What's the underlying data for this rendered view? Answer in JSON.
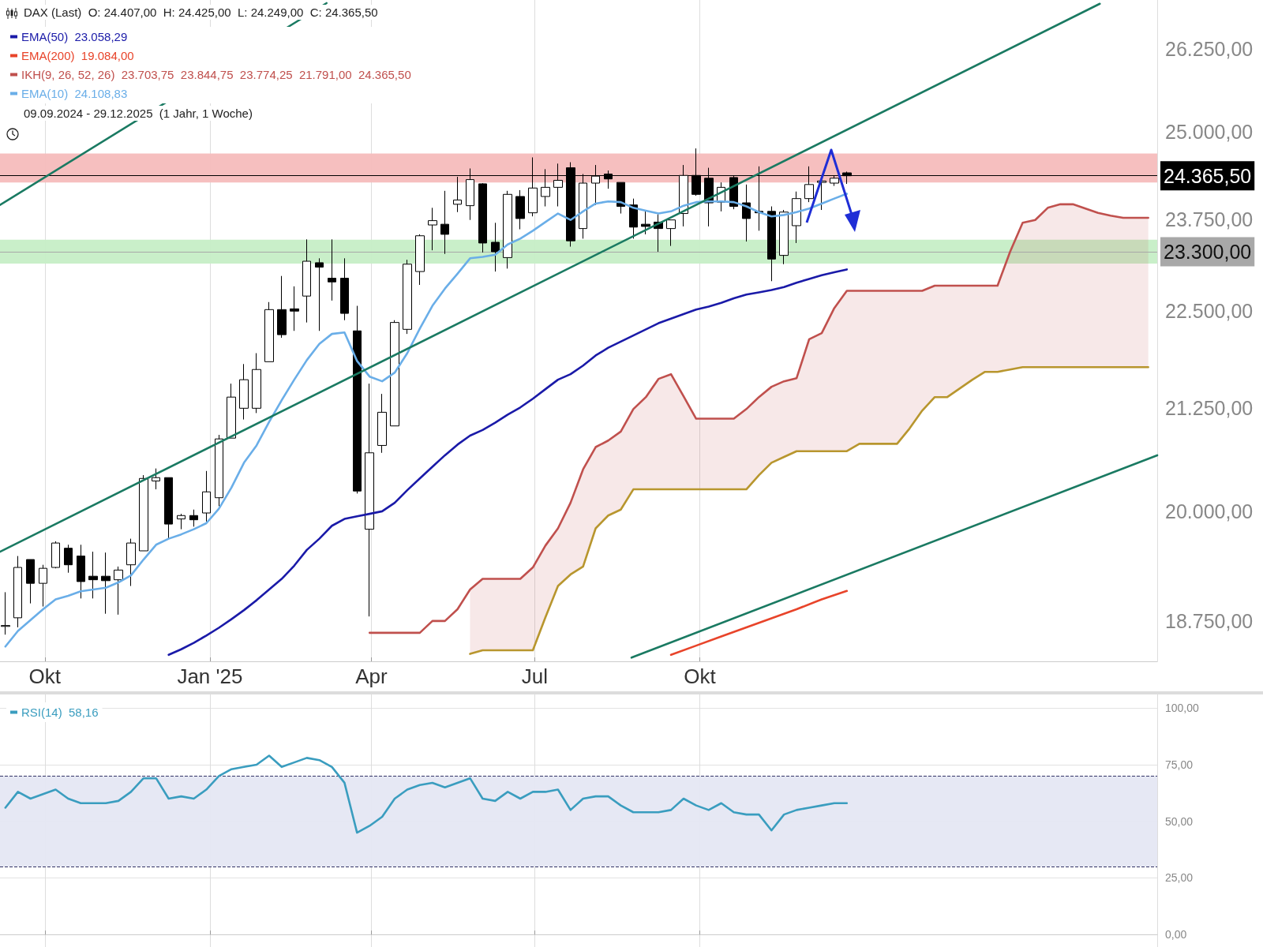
{
  "chart_data": [
    {
      "type": "candlestick",
      "title": "DAX (Last)  O: 24.407,00  H: 24.425,00  L: 24.249,00  C: 24.365,50",
      "subtitle": "09.09.2024 - 29.12.2025  (1 Jahr, 1 Woche)",
      "x": [
        "2024-09-09",
        "2024-09-16",
        "2024-09-23",
        "2024-09-30",
        "2024-10-07",
        "2024-10-14",
        "2024-10-21",
        "2024-10-28",
        "2024-11-04",
        "2024-11-11",
        "2024-11-18",
        "2024-11-25",
        "2024-12-02",
        "2024-12-09",
        "2024-12-16",
        "2024-12-23",
        "2024-12-30",
        "2025-01-06",
        "2025-01-13",
        "2025-01-20",
        "2025-01-27",
        "2025-02-03",
        "2025-02-10",
        "2025-02-17",
        "2025-02-24",
        "2025-03-03",
        "2025-03-10",
        "2025-03-17",
        "2025-03-24",
        "2025-03-31",
        "2025-04-07",
        "2025-04-14",
        "2025-04-21",
        "2025-04-28",
        "2025-05-05",
        "2025-05-12",
        "2025-05-19",
        "2025-05-26",
        "2025-06-02",
        "2025-06-09",
        "2025-06-16",
        "2025-06-23",
        "2025-06-30",
        "2025-07-07",
        "2025-07-14",
        "2025-07-21",
        "2025-07-28",
        "2025-08-04",
        "2025-08-11",
        "2025-08-18",
        "2025-08-25",
        "2025-09-01",
        "2025-09-08",
        "2025-09-15",
        "2025-09-22",
        "2025-09-29",
        "2025-10-06",
        "2025-10-13",
        "2025-10-20",
        "2025-10-27",
        "2025-11-03",
        "2025-11-10",
        "2025-11-17",
        "2025-11-24",
        "2025-12-01",
        "2025-12-08",
        "2025-12-15",
        "2025-12-22"
      ],
      "ohlc": [
        [
          18690,
          19070,
          18600,
          18700
        ],
        [
          18785,
          19480,
          18680,
          19350
        ],
        [
          19440,
          19440,
          18945,
          19170
        ],
        [
          19170,
          19380,
          18910,
          19340
        ],
        [
          19350,
          19650,
          19340,
          19630
        ],
        [
          19570,
          19610,
          19290,
          19380
        ],
        [
          19480,
          19610,
          19000,
          19190
        ],
        [
          19250,
          19530,
          19000,
          19210
        ],
        [
          19250,
          19520,
          18830,
          19200
        ],
        [
          19210,
          19360,
          18820,
          19320
        ],
        [
          19380,
          19680,
          19140,
          19630
        ],
        [
          19540,
          20430,
          19540,
          20390
        ],
        [
          20360,
          20510,
          20260,
          20400
        ],
        [
          20400,
          20400,
          19680,
          19850
        ],
        [
          19910,
          19970,
          19790,
          19950
        ],
        [
          19950,
          20020,
          19820,
          19900
        ],
        [
          19980,
          20480,
          19880,
          20230
        ],
        [
          20160,
          20920,
          20060,
          20870
        ],
        [
          20880,
          21560,
          20880,
          21390
        ],
        [
          21250,
          21810,
          21110,
          21610
        ],
        [
          21250,
          21950,
          21190,
          21740
        ],
        [
          21840,
          22620,
          21840,
          22520
        ],
        [
          22520,
          22970,
          22150,
          22190
        ],
        [
          22530,
          22830,
          22240,
          22500
        ],
        [
          22700,
          23470,
          22350,
          23170
        ],
        [
          23150,
          23210,
          22240,
          23090
        ],
        [
          22940,
          23470,
          22640,
          22890
        ],
        [
          22940,
          23210,
          22380,
          22470
        ],
        [
          22240,
          22570,
          20210,
          20240
        ],
        [
          19790,
          21560,
          18800,
          20700
        ],
        [
          20790,
          21430,
          20700,
          21200
        ],
        [
          21030,
          22380,
          21030,
          22350
        ],
        [
          22260,
          23190,
          22200,
          23130
        ],
        [
          23030,
          23540,
          22850,
          23520
        ],
        [
          23670,
          23910,
          23320,
          23730
        ],
        [
          23680,
          24150,
          23270,
          23540
        ],
        [
          23960,
          24350,
          23850,
          24020
        ],
        [
          23940,
          24470,
          23740,
          24310
        ],
        [
          24250,
          24260,
          23290,
          23420
        ],
        [
          23430,
          23700,
          23030,
          23300
        ],
        [
          23220,
          24150,
          23070,
          24100
        ],
        [
          24070,
          24160,
          23610,
          23760
        ],
        [
          23840,
          24630,
          23790,
          24190
        ],
        [
          24070,
          24460,
          23930,
          24200
        ],
        [
          24200,
          24540,
          23930,
          24300
        ],
        [
          24480,
          24560,
          23370,
          23450
        ],
        [
          23620,
          24390,
          23480,
          24260
        ],
        [
          24260,
          24520,
          23950,
          24360
        ],
        [
          24390,
          24440,
          24180,
          24320
        ],
        [
          24270,
          24270,
          23830,
          23930
        ],
        [
          23950,
          24040,
          23480,
          23640
        ],
        [
          23680,
          23860,
          23540,
          23650
        ],
        [
          23710,
          23820,
          23300,
          23620
        ],
        [
          23620,
          23740,
          23380,
          23740
        ],
        [
          23830,
          24520,
          23650,
          24370
        ],
        [
          24370,
          24760,
          24080,
          24100
        ],
        [
          24330,
          24480,
          23650,
          23980
        ],
        [
          23990,
          24270,
          23860,
          24200
        ],
        [
          24340,
          24370,
          23890,
          23930
        ],
        [
          23980,
          24240,
          23440,
          23760
        ],
        [
          23860,
          24500,
          23590,
          23840
        ],
        [
          23860,
          23930,
          22900,
          23200
        ],
        [
          23250,
          23880,
          23130,
          23850
        ],
        [
          23660,
          24140,
          23420,
          24040
        ],
        [
          24040,
          24500,
          23990,
          24240
        ],
        [
          24270,
          24300,
          23880,
          24290
        ],
        [
          24260,
          24370,
          24220,
          24330
        ],
        [
          24407,
          24425,
          24249,
          24365.5
        ]
      ],
      "color": "#000000",
      "series": [
        {
          "type": "line",
          "name": "EMA(50)  23.058,29",
          "color": "#1a1aa8",
          "values": [
            null,
            null,
            null,
            null,
            null,
            null,
            null,
            null,
            null,
            null,
            null,
            null,
            null,
            18380,
            18440,
            18510,
            18590,
            18675,
            18770,
            18870,
            18980,
            19100,
            19220,
            19370,
            19550,
            19680,
            19830,
            19910,
            19940,
            19970,
            20000,
            20100,
            20250,
            20390,
            20530,
            20670,
            20800,
            20910,
            20980,
            21070,
            21170,
            21260,
            21370,
            21490,
            21610,
            21680,
            21790,
            21920,
            22020,
            22100,
            22180,
            22260,
            22340,
            22400,
            22460,
            22520,
            22560,
            22610,
            22670,
            22720,
            22750,
            22780,
            22820,
            22880,
            22930,
            22980,
            23020,
            23058.29
          ]
        },
        {
          "type": "line",
          "name": "EMA(200)  19.084,00",
          "color": "#e8442a",
          "x": [
            "2025-09-15",
            "2025-09-29",
            "2025-10-13",
            "2025-10-27",
            "2025-11-10",
            "2025-11-24",
            "2025-12-08",
            "2025-12-22"
          ],
          "values": [
            18380,
            18480,
            18580,
            18680,
            18780,
            18880,
            18990,
            19084
          ]
        },
        {
          "type": "line",
          "name": "IKH(9, 26, 52, 26)  23.703,75  23.844,75  23.774,25  21.791,00  24.365,50",
          "color": "#c0504d",
          "x": [
            "2025-03-31",
            "2025-04-07",
            "2025-04-14",
            "2025-04-21",
            "2025-04-28",
            "2025-05-05",
            "2025-05-12",
            "2025-05-19",
            "2025-05-26",
            "2025-06-02",
            "2025-06-09",
            "2025-06-16",
            "2025-06-23",
            "2025-06-30",
            "2025-07-07",
            "2025-07-14",
            "2025-07-21",
            "2025-07-28",
            "2025-08-04",
            "2025-08-11",
            "2025-08-18",
            "2025-08-25",
            "2025-09-01",
            "2025-09-08",
            "2025-09-15",
            "2025-09-22",
            "2025-09-29",
            "2025-10-06",
            "2025-10-13",
            "2025-10-20",
            "2025-10-27",
            "2025-11-03",
            "2025-11-10",
            "2025-11-17",
            "2025-11-24",
            "2025-12-01",
            "2025-12-08",
            "2025-12-15",
            "2025-12-22",
            "2025-12-29",
            "2026-01-05",
            "2026-01-12",
            "2026-01-19",
            "2026-01-26",
            "2026-02-02",
            "2026-02-09",
            "2026-02-16",
            "2026-02-23",
            "2026-03-02",
            "2026-03-09",
            "2026-03-16",
            "2026-03-23",
            "2026-03-30",
            "2026-04-06",
            "2026-04-13",
            "2026-04-20",
            "2026-04-27",
            "2026-05-04",
            "2026-05-11",
            "2026-05-18",
            "2026-05-25",
            "2026-06-01",
            "2026-06-08"
          ],
          "values": [
            18620,
            18620,
            18620,
            18620,
            18620,
            18750,
            18750,
            18880,
            19100,
            19220,
            19220,
            19220,
            19220,
            19350,
            19600,
            19800,
            20100,
            20500,
            20770,
            20850,
            20960,
            21240,
            21390,
            21620,
            21680,
            21400,
            21120,
            21120,
            21120,
            21120,
            21240,
            21390,
            21520,
            21590,
            21630,
            22130,
            22210,
            22540,
            22770,
            22770,
            22770,
            22770,
            22770,
            22770,
            22770,
            22840,
            22840,
            22840,
            22840,
            22840,
            22840,
            23300,
            23700,
            23740,
            23910,
            23960,
            23960,
            23900,
            23840,
            23800,
            23770,
            23770,
            23770
          ],
          "upper": [
            null,
            null,
            null,
            null,
            null,
            null,
            null,
            null,
            19100,
            19220,
            19220,
            19220,
            19220,
            19350,
            19600,
            19800,
            20100,
            20500,
            20770,
            20850,
            20960,
            21240,
            21390,
            21620,
            21680,
            21400,
            21120,
            21120,
            21120,
            21120,
            21240,
            21390,
            21520,
            21590,
            21630,
            22130,
            22210,
            22540,
            22770,
            22770,
            22770,
            22770,
            22770,
            22770,
            22770,
            22840,
            22840,
            22840,
            22840,
            22840,
            22840,
            23300,
            23700,
            23740,
            23910,
            23960,
            23960,
            23900,
            23840,
            23800,
            23770,
            23770,
            23770
          ],
          "lower": [
            null,
            null,
            null,
            null,
            null,
            null,
            null,
            null,
            18390,
            18430,
            18430,
            18430,
            18430,
            18430,
            18790,
            19140,
            19270,
            19360,
            19800,
            19950,
            20020,
            20260,
            20260,
            20260,
            20260,
            20260,
            20260,
            20260,
            20260,
            20260,
            20260,
            20430,
            20580,
            20650,
            20720,
            20720,
            20720,
            20720,
            20720,
            20810,
            20810,
            20810,
            20810,
            21000,
            21220,
            21390,
            21390,
            21500,
            21610,
            21710,
            21710,
            21740,
            21770,
            21770,
            21770,
            21770,
            21770,
            21770,
            21770,
            21770,
            21770,
            21770,
            21770
          ]
        },
        {
          "type": "line",
          "color": "#b8962e",
          "x": [
            "2025-05-26",
            "2025-06-02",
            "2025-06-09",
            "2025-06-16",
            "2025-06-23",
            "2025-06-30",
            "2025-07-07",
            "2025-07-14",
            "2025-07-21",
            "2025-07-28",
            "2025-08-04",
            "2025-08-11",
            "2025-08-18",
            "2025-08-25",
            "2025-09-01",
            "2025-09-08",
            "2025-09-15",
            "2025-09-22",
            "2025-09-29",
            "2025-10-06",
            "2025-10-13",
            "2025-10-20",
            "2025-10-27",
            "2025-11-03",
            "2025-11-10",
            "2025-11-17",
            "2025-11-24",
            "2025-12-01",
            "2025-12-08",
            "2025-12-15",
            "2025-12-22",
            "2025-12-29",
            "2026-01-05",
            "2026-01-12",
            "2026-01-19",
            "2026-01-26",
            "2026-02-02",
            "2026-02-09",
            "2026-02-16",
            "2026-02-23",
            "2026-03-02",
            "2026-03-09",
            "2026-03-16",
            "2026-03-23",
            "2026-03-30",
            "2026-04-06",
            "2026-04-13",
            "2026-04-20",
            "2026-04-27",
            "2026-05-04",
            "2026-05-11",
            "2026-05-18",
            "2026-05-25",
            "2026-06-01",
            "2026-06-08"
          ],
          "values": [
            18390,
            18430,
            18430,
            18430,
            18430,
            18430,
            18790,
            19140,
            19270,
            19360,
            19800,
            19950,
            20020,
            20260,
            20260,
            20260,
            20260,
            20260,
            20260,
            20260,
            20260,
            20260,
            20260,
            20430,
            20580,
            20650,
            20720,
            20720,
            20720,
            20720,
            20720,
            20810,
            20810,
            20810,
            20810,
            21000,
            21220,
            21390,
            21390,
            21500,
            21610,
            21710,
            21710,
            21740,
            21770,
            21770,
            21770,
            21770,
            21770,
            21770,
            21770,
            21770,
            21770,
            21770,
            21770
          ]
        },
        {
          "type": "line",
          "name": "EMA(10)  24.108,83",
          "color": "#6aaee8",
          "values": [
            18470,
            18640,
            18760,
            18880,
            18990,
            19030,
            19080,
            19100,
            19120,
            19180,
            19260,
            19440,
            19610,
            19680,
            19730,
            19790,
            19860,
            20030,
            20280,
            20580,
            20790,
            21080,
            21350,
            21610,
            21860,
            22070,
            22200,
            22220,
            21850,
            21650,
            21590,
            21700,
            21950,
            22270,
            22570,
            22800,
            23000,
            23210,
            23230,
            23260,
            23400,
            23480,
            23590,
            23710,
            23830,
            23740,
            23860,
            23970,
            24000,
            23990,
            23910,
            23870,
            23830,
            23860,
            23940,
            23990,
            24000,
            24000,
            23990,
            23930,
            23850,
            23790,
            23810,
            23850,
            23900,
            23970,
            24040,
            24108.83
          ]
        },
        {
          "type": "line",
          "color": "#1a7a62",
          "x": [
            "2024-09-06",
            "2025-03-07"
          ],
          "values": [
            23950,
            26970
          ]
        },
        {
          "type": "line",
          "color": "#1a7a62",
          "x": [
            "2024-09-06",
            "2026-05-12"
          ],
          "values": [
            19530,
            26960
          ]
        },
        {
          "type": "line",
          "color": "#1a7a62",
          "x": [
            "2025-08-24",
            "2026-06-13"
          ],
          "values": [
            18350,
            20670
          ]
        }
      ],
      "xlim": [
        "2024-09-06",
        "2026-06-13"
      ],
      "xticks": [
        {
          "value": "2024-10-01",
          "label": "Okt"
        },
        {
          "value": "2025-01-01",
          "label": "Jan '25"
        },
        {
          "value": "2025-04-01",
          "label": "Apr"
        },
        {
          "value": "2025-07-01",
          "label": "Jul"
        },
        {
          "value": "2025-10-01",
          "label": "Okt"
        }
      ],
      "ylim": [
        18310,
        27020
      ],
      "yticks": [
        {
          "value": 18750,
          "label": "18.750,00"
        },
        {
          "value": 20000,
          "label": "20.000,00"
        },
        {
          "value": 21250,
          "label": "21.250,00"
        },
        {
          "value": 22500,
          "label": "22.500,00"
        },
        {
          "value": 23750,
          "label": "23.750,00"
        },
        {
          "value": 25000,
          "label": "25.000,00"
        },
        {
          "value": 26250,
          "label": "26.250,00"
        }
      ],
      "log": true,
      "grid": "x",
      "legend": "top left",
      "marker": "none",
      "bands": [
        {
          "axis": "y",
          "from": 24268,
          "to": 24688,
          "color": "#f6bcbc"
        },
        {
          "axis": "y",
          "from": 23137,
          "to": 23465,
          "color": "#c6eec6"
        }
      ],
      "ref_lines": [
        {
          "axis": "y",
          "value": 24365.5,
          "label": "24.365,50",
          "color": "#000000"
        },
        {
          "axis": "y",
          "value": 23300,
          "label": "23.300,00",
          "color": "#a8a8a8"
        }
      ]
    },
    {
      "type": "line",
      "x": [
        "2024-09-09",
        "2024-09-16",
        "2024-09-23",
        "2024-09-30",
        "2024-10-07",
        "2024-10-14",
        "2024-10-21",
        "2024-10-28",
        "2024-11-04",
        "2024-11-11",
        "2024-11-18",
        "2024-11-25",
        "2024-12-02",
        "2024-12-09",
        "2024-12-16",
        "2024-12-23",
        "2024-12-30",
        "2025-01-06",
        "2025-01-13",
        "2025-01-20",
        "2025-01-27",
        "2025-02-03",
        "2025-02-10",
        "2025-02-17",
        "2025-02-24",
        "2025-03-03",
        "2025-03-10",
        "2025-03-17",
        "2025-03-24",
        "2025-03-31",
        "2025-04-07",
        "2025-04-14",
        "2025-04-21",
        "2025-04-28",
        "2025-05-05",
        "2025-05-12",
        "2025-05-19",
        "2025-05-26",
        "2025-06-02",
        "2025-06-09",
        "2025-06-16",
        "2025-06-23",
        "2025-06-30",
        "2025-07-07",
        "2025-07-14",
        "2025-07-21",
        "2025-07-28",
        "2025-08-04",
        "2025-08-11",
        "2025-08-18",
        "2025-08-25",
        "2025-09-01",
        "2025-09-08",
        "2025-09-15",
        "2025-09-22",
        "2025-09-29",
        "2025-10-06",
        "2025-10-13",
        "2025-10-20",
        "2025-10-27",
        "2025-11-03",
        "2025-11-10",
        "2025-11-17",
        "2025-11-24",
        "2025-12-01",
        "2025-12-08",
        "2025-12-15",
        "2025-12-22"
      ],
      "series": [
        {
          "name": "RSI(14)  58,16",
          "color": "#3a9dbf",
          "values": [
            56,
            63,
            60,
            62,
            64,
            60,
            58,
            58,
            58,
            59,
            63,
            69,
            69,
            60,
            61,
            60,
            64,
            70,
            73,
            74,
            75,
            79,
            74,
            76,
            78,
            77,
            74,
            67,
            45,
            48,
            52,
            60,
            64,
            66,
            67,
            65,
            67,
            69,
            60,
            59,
            63,
            60,
            63,
            63,
            64,
            55,
            60,
            61,
            61,
            57,
            54,
            54,
            54,
            55,
            60,
            57,
            55,
            58,
            54,
            53,
            53,
            46,
            53,
            55,
            56,
            57,
            58,
            58
          ]
        }
      ],
      "xlim": [
        "2024-09-06",
        "2026-06-13"
      ],
      "xticks": [
        {
          "value": "2024-10-01",
          "label": null
        },
        {
          "value": "2025-01-01",
          "label": null
        },
        {
          "value": "2025-04-01",
          "label": null
        },
        {
          "value": "2025-07-01",
          "label": null
        },
        {
          "value": "2025-10-01",
          "label": null
        }
      ],
      "ylim": [
        -5.5,
        106
      ],
      "yticks": [
        {
          "value": 0,
          "label": "0,00"
        },
        {
          "value": 25,
          "label": "25,00"
        },
        {
          "value": 50,
          "label": "50,00"
        },
        {
          "value": 75,
          "label": "75,00"
        },
        {
          "value": 100,
          "label": "100,00"
        }
      ],
      "grid": true,
      "legend": "top left",
      "marker": "none",
      "tick_labels": "y",
      "bands": [
        {
          "axis": "y",
          "from": 30,
          "to": 70,
          "color": "#e5e7f3"
        }
      ],
      "ref_lines": [
        {
          "axis": "y",
          "value": 70,
          "color": "#333366",
          "line_style": "dashed"
        },
        {
          "axis": "y",
          "value": 30,
          "color": "#333366",
          "line_style": "dashed"
        }
      ]
    }
  ]
}
